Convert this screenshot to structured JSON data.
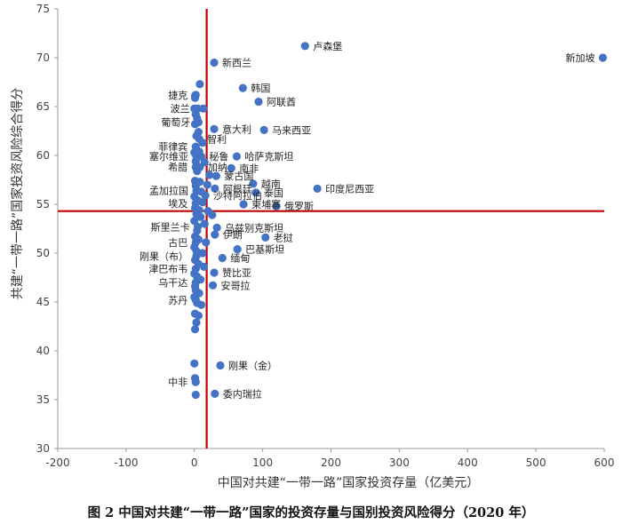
{
  "figure_caption": "图 2  中国对共建“一带一路”国家的投资存量与国别投资风险得分（2020 年）",
  "colors": {
    "point": "#4472C4",
    "reference_line": "#C00000",
    "text": "#222222"
  },
  "chart_data": {
    "type": "scatter",
    "xlabel": "中国对共建“一带一路”国家投资存量（亿美元）",
    "ylabel": "共建“一带一路”国家投资风险综合得分",
    "xlim": [
      -200,
      600
    ],
    "ylim": [
      30,
      75
    ],
    "xticks": [
      -200,
      -100,
      0,
      100,
      200,
      300,
      400,
      500,
      600
    ],
    "yticks": [
      30,
      35,
      40,
      45,
      50,
      55,
      60,
      65,
      70,
      75
    ],
    "reference_lines": {
      "x": 18,
      "y": 54.3
    },
    "grid": false,
    "labeled_points": [
      {
        "label": "卢森堡",
        "x": 162,
        "y": 71.2
      },
      {
        "label": "新加坡",
        "x": 598,
        "y": 70.0
      },
      {
        "label": "新西兰",
        "x": 29,
        "y": 69.5
      },
      {
        "label": "韩国",
        "x": 71,
        "y": 66.9
      },
      {
        "label": "阿联酋",
        "x": 94,
        "y": 65.5
      },
      {
        "label": "捷克",
        "x": 2,
        "y": 66.2
      },
      {
        "label": "波兰",
        "x": 5,
        "y": 64.8
      },
      {
        "label": "葡萄牙",
        "x": 6,
        "y": 63.4
      },
      {
        "label": "意大利",
        "x": 29,
        "y": 62.7
      },
      {
        "label": "马来西亚",
        "x": 102,
        "y": 62.6
      },
      {
        "label": "智利",
        "x": 7,
        "y": 61.7
      },
      {
        "label": "菲律宾",
        "x": 2,
        "y": 60.9
      },
      {
        "label": "秘鲁",
        "x": 10,
        "y": 59.9
      },
      {
        "label": "哈萨克斯坦",
        "x": 62,
        "y": 59.9
      },
      {
        "label": "塞尔维亚",
        "x": 3,
        "y": 59.9
      },
      {
        "label": "加纳",
        "x": 8,
        "y": 58.8
      },
      {
        "label": "希腊",
        "x": 2,
        "y": 58.8
      },
      {
        "label": "南非",
        "x": 54,
        "y": 58.7
      },
      {
        "label": "蒙古国",
        "x": 32,
        "y": 57.9
      },
      {
        "label": "越南",
        "x": 86,
        "y": 57.1
      },
      {
        "label": "阿根廷",
        "x": 30,
        "y": 56.6
      },
      {
        "label": "孟加拉国",
        "x": 3,
        "y": 56.4
      },
      {
        "label": "泰国",
        "x": 90,
        "y": 56.2
      },
      {
        "label": "印度尼西亚",
        "x": 180,
        "y": 56.6
      },
      {
        "label": "沙特阿拉伯",
        "x": 16,
        "y": 55.9
      },
      {
        "label": "埃及",
        "x": 2,
        "y": 55.1
      },
      {
        "label": "柬埔寨",
        "x": 72,
        "y": 55.0
      },
      {
        "label": "俄罗斯",
        "x": 120,
        "y": 54.8
      },
      {
        "label": "斯里兰卡",
        "x": 5,
        "y": 52.7
      },
      {
        "label": "乌兹别克斯坦",
        "x": 33,
        "y": 52.6
      },
      {
        "label": "伊朗",
        "x": 30,
        "y": 51.9
      },
      {
        "label": "老挝",
        "x": 104,
        "y": 51.6
      },
      {
        "label": "古巴",
        "x": 2,
        "y": 51.1
      },
      {
        "label": "巴基斯坦",
        "x": 63,
        "y": 50.4
      },
      {
        "label": "刚果（布）",
        "x": 3,
        "y": 49.7
      },
      {
        "label": "缅甸",
        "x": 41,
        "y": 49.5
      },
      {
        "label": "津巴布韦",
        "x": 2,
        "y": 48.4
      },
      {
        "label": "赞比亚",
        "x": 29,
        "y": 48.0
      },
      {
        "label": "乌干达",
        "x": 2,
        "y": 47.0
      },
      {
        "label": "安哥拉",
        "x": 27,
        "y": 46.7
      },
      {
        "label": "苏丹",
        "x": 2,
        "y": 45.2
      },
      {
        "label": "刚果（金）",
        "x": 38,
        "y": 38.5
      },
      {
        "label": "中非",
        "x": 2,
        "y": 36.8
      },
      {
        "label": "委内瑞拉",
        "x": 30,
        "y": 35.6
      }
    ],
    "unlabeled_points": [
      {
        "x": 8,
        "y": 67.3
      },
      {
        "x": 1,
        "y": 66.1
      },
      {
        "x": 1,
        "y": 65.9
      },
      {
        "x": 0,
        "y": 64.8
      },
      {
        "x": 13,
        "y": 64.8
      },
      {
        "x": 2,
        "y": 64.2
      },
      {
        "x": 4,
        "y": 63.8
      },
      {
        "x": 1,
        "y": 63.2
      },
      {
        "x": 6,
        "y": 62.4
      },
      {
        "x": 3,
        "y": 62.0
      },
      {
        "x": 12,
        "y": 61.3
      },
      {
        "x": 0,
        "y": 60.3
      },
      {
        "x": 7,
        "y": 60.4
      },
      {
        "x": 2,
        "y": 59.4
      },
      {
        "x": 15,
        "y": 59.3
      },
      {
        "x": 4,
        "y": 58.4
      },
      {
        "x": 22,
        "y": 58.0
      },
      {
        "x": 1,
        "y": 57.4
      },
      {
        "x": 8,
        "y": 57.3
      },
      {
        "x": 19,
        "y": 57.0
      },
      {
        "x": 2,
        "y": 56.9
      },
      {
        "x": 10,
        "y": 56.3
      },
      {
        "x": 0,
        "y": 55.8
      },
      {
        "x": 5,
        "y": 55.4
      },
      {
        "x": 12,
        "y": 55.2
      },
      {
        "x": 1,
        "y": 54.6
      },
      {
        "x": 7,
        "y": 54.4
      },
      {
        "x": 20,
        "y": 54.3
      },
      {
        "x": 3,
        "y": 54.0
      },
      {
        "x": 26,
        "y": 53.9
      },
      {
        "x": 9,
        "y": 53.7
      },
      {
        "x": 0,
        "y": 53.3
      },
      {
        "x": 15,
        "y": 53.0
      },
      {
        "x": 4,
        "y": 52.3
      },
      {
        "x": 1,
        "y": 51.7
      },
      {
        "x": 6,
        "y": 51.4
      },
      {
        "x": 17,
        "y": 51.1
      },
      {
        "x": 0,
        "y": 50.6
      },
      {
        "x": 3,
        "y": 50.2
      },
      {
        "x": 12,
        "y": 50.0
      },
      {
        "x": 1,
        "y": 49.3
      },
      {
        "x": 6,
        "y": 48.9
      },
      {
        "x": 14,
        "y": 48.6
      },
      {
        "x": 0,
        "y": 47.9
      },
      {
        "x": 4,
        "y": 47.6
      },
      {
        "x": 9,
        "y": 47.3
      },
      {
        "x": 1,
        "y": 46.6
      },
      {
        "x": 2,
        "y": 46.2
      },
      {
        "x": 7,
        "y": 45.9
      },
      {
        "x": 0,
        "y": 45.5
      },
      {
        "x": 4,
        "y": 44.9
      },
      {
        "x": 10,
        "y": 44.7
      },
      {
        "x": 1,
        "y": 43.8
      },
      {
        "x": 6,
        "y": 43.6
      },
      {
        "x": 3,
        "y": 42.9
      },
      {
        "x": 1,
        "y": 42.2
      },
      {
        "x": 0,
        "y": 38.7
      },
      {
        "x": 1,
        "y": 37.2
      },
      {
        "x": 2,
        "y": 35.5
      }
    ]
  }
}
